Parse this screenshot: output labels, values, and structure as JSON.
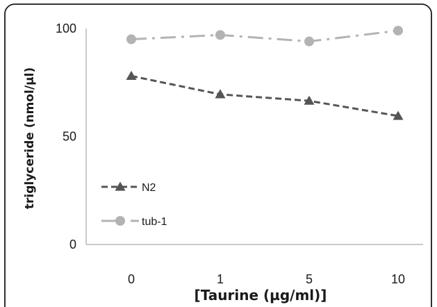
{
  "chart_data": {
    "type": "line",
    "categories": [
      "0",
      "1",
      "5",
      "10"
    ],
    "xlabel": "[Taurine (µg/ml)]",
    "ylabel": "triglyceride (nmol/µl)",
    "ylim": [
      0,
      100
    ],
    "yticks": [
      "0",
      "50",
      "100"
    ],
    "grid": false,
    "legend_position": "bottom-left",
    "series": [
      {
        "name": "N2",
        "values": [
          78,
          69.5,
          66.5,
          59.5
        ],
        "color": "#555555",
        "marker": "triangle",
        "dash": "dashed"
      },
      {
        "name": "tub-1",
        "values": [
          95,
          97,
          94,
          99
        ],
        "color": "#b3b3b3",
        "marker": "circle",
        "dash": "dash-dot"
      }
    ]
  }
}
